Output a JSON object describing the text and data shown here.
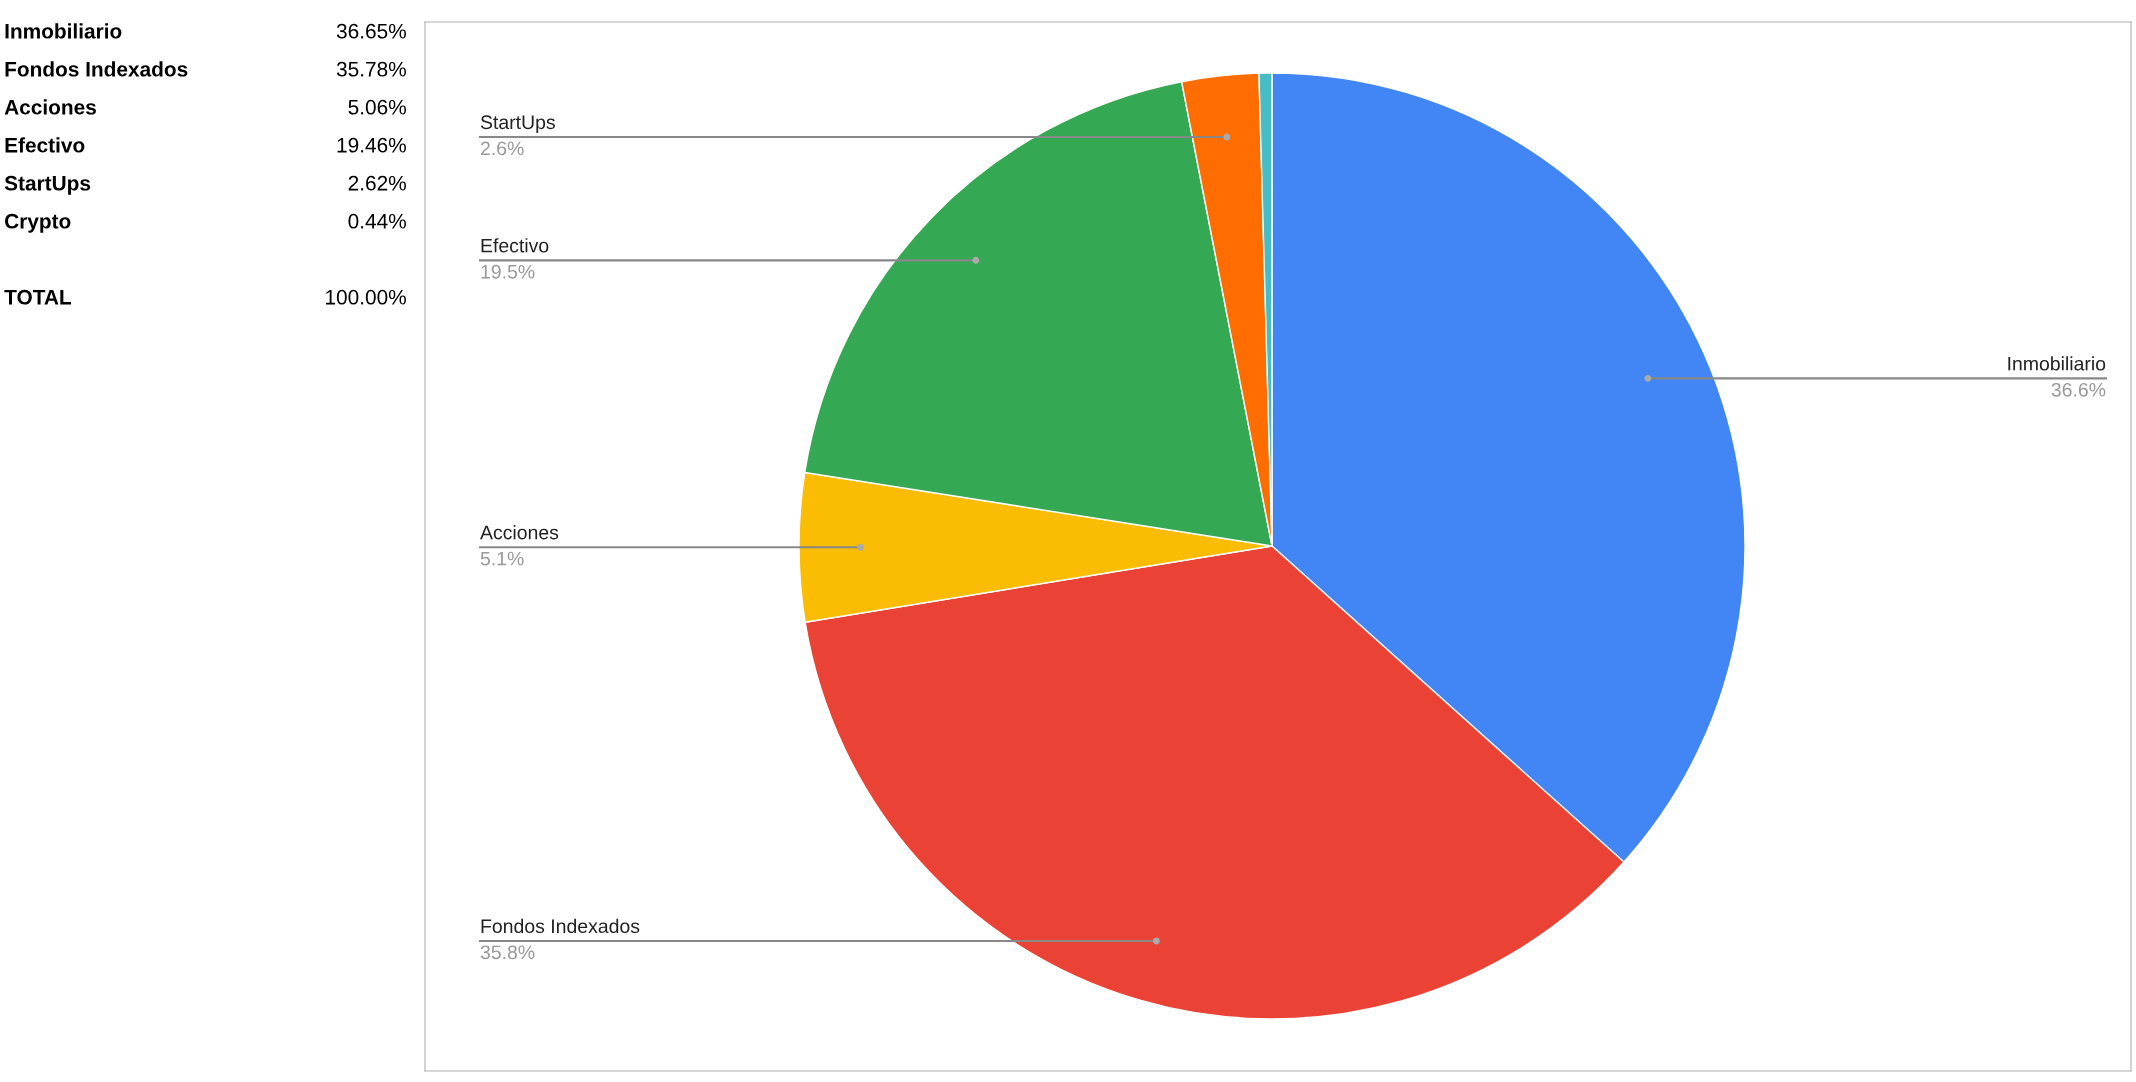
{
  "chart_data": [
    {
      "type": "other",
      "annotations": [
        "Inmobiliario",
        "36.65%",
        "Fondos Indexados",
        "35.78%",
        "Acciones",
        "5.06%",
        "Efectivo",
        "19.46%",
        "StartUps",
        "2.62%",
        "Crypto",
        "0.44%",
        "TOTAL",
        "100.00%"
      ]
    },
    {
      "type": "pie",
      "categories": [
        "Inmobiliario",
        "Fondos Indexados",
        "Acciones",
        "Efectivo",
        "StartUps",
        null
      ],
      "values": [
        36.65,
        35.78,
        5.06,
        19.46,
        2.62,
        0.44
      ],
      "colors": [
        "#4285f4",
        "#ea4335",
        "#fbbc04",
        "#34a853",
        "#ff6d01",
        "#46bdc6"
      ],
      "value_labels": [
        "36.6%",
        "35.8%",
        "5.1%",
        "19.5%",
        "2.6%",
        null
      ],
      "legend": false
    }
  ]
}
